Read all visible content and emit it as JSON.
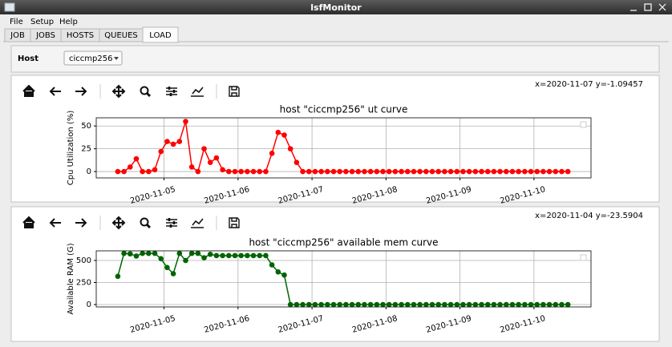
{
  "window": {
    "title": "lsfMonitor",
    "menu": [
      "File",
      "Setup",
      "Help"
    ],
    "tabs": [
      "JOB",
      "JOBS",
      "HOSTS",
      "QUEUES",
      "LOAD"
    ],
    "active_tab": 4,
    "host_label": "Host",
    "host_value": "ciccmp256"
  },
  "chart_data": [
    {
      "type": "line",
      "status": "x=2020-11-07 y=-1.09457",
      "title": "host \"ciccmp256\" ut curve",
      "ylabel": "Cpu Utilization (%)",
      "x": [
        "2020-11-04 09:00",
        "2020-11-04 11:00",
        "2020-11-04 13:00",
        "2020-11-04 15:00",
        "2020-11-04 17:00",
        "2020-11-04 19:00",
        "2020-11-04 21:00",
        "2020-11-04 23:00",
        "2020-11-05 01:00",
        "2020-11-05 03:00",
        "2020-11-05 05:00",
        "2020-11-05 07:00",
        "2020-11-05 09:00",
        "2020-11-05 11:00",
        "2020-11-05 13:00",
        "2020-11-05 15:00",
        "2020-11-05 17:00",
        "2020-11-05 19:00",
        "2020-11-05 21:00",
        "2020-11-05 23:00",
        "2020-11-06 01:00",
        "2020-11-06 03:00",
        "2020-11-06 05:00",
        "2020-11-06 07:00",
        "2020-11-06 09:00",
        "2020-11-06 11:00",
        "2020-11-06 13:00",
        "2020-11-06 15:00",
        "2020-11-06 17:00",
        "2020-11-06 19:00",
        "2020-11-06 21:00",
        "2020-11-06 23:00",
        "2020-11-07 01:00",
        "2020-11-07 03:00",
        "2020-11-07 05:00",
        "2020-11-07 07:00",
        "2020-11-07 09:00",
        "2020-11-07 11:00",
        "2020-11-07 13:00",
        "2020-11-07 15:00",
        "2020-11-07 17:00",
        "2020-11-07 19:00",
        "2020-11-07 21:00",
        "2020-11-07 23:00",
        "2020-11-08 01:00",
        "2020-11-08 03:00",
        "2020-11-08 05:00",
        "2020-11-08 07:00",
        "2020-11-08 09:00",
        "2020-11-08 11:00",
        "2020-11-08 13:00",
        "2020-11-08 15:00",
        "2020-11-08 17:00",
        "2020-11-08 19:00",
        "2020-11-08 21:00",
        "2020-11-08 23:00",
        "2020-11-09 01:00",
        "2020-11-09 03:00",
        "2020-11-09 05:00",
        "2020-11-09 07:00",
        "2020-11-09 09:00",
        "2020-11-09 11:00",
        "2020-11-09 13:00",
        "2020-11-09 15:00",
        "2020-11-09 17:00",
        "2020-11-09 19:00",
        "2020-11-09 21:00",
        "2020-11-09 23:00",
        "2020-11-10 01:00",
        "2020-11-10 03:00",
        "2020-11-10 05:00",
        "2020-11-10 07:00",
        "2020-11-10 09:00",
        "2020-11-10 11:00"
      ],
      "series": [
        {
          "color": "#ff0000",
          "values": [
            0,
            0,
            5,
            14,
            0,
            0,
            2,
            22,
            33,
            30,
            33,
            55,
            5,
            0,
            25,
            10,
            15,
            2,
            0,
            0,
            0,
            0,
            0,
            0,
            0,
            20,
            43,
            40,
            25,
            10,
            0,
            0,
            0,
            0,
            0,
            0,
            0,
            0,
            0,
            0,
            0,
            0,
            0,
            0,
            0,
            0,
            0,
            0,
            0,
            0,
            0,
            0,
            0,
            0,
            0,
            0,
            0,
            0,
            0,
            0,
            0,
            0,
            0,
            0,
            0,
            0,
            0,
            0,
            0,
            0,
            0,
            0,
            0,
            0
          ]
        }
      ],
      "xlim": [
        "2020-11-04 02:00",
        "2020-11-10 18:30"
      ],
      "xticks": [
        "2020-11-05",
        "2020-11-06",
        "2020-11-07",
        "2020-11-08",
        "2020-11-09",
        "2020-11-10"
      ],
      "ylim": [
        -7,
        59
      ],
      "yticks": [
        0,
        25,
        50
      ],
      "grid": true
    },
    {
      "type": "line",
      "status": "x=2020-11-04 y=-23.5904",
      "title": "host \"ciccmp256\" available mem curve",
      "ylabel": "Available RAM (G)",
      "x": [
        "2020-11-04 09:00",
        "2020-11-04 11:00",
        "2020-11-04 13:00",
        "2020-11-04 15:00",
        "2020-11-04 17:00",
        "2020-11-04 19:00",
        "2020-11-04 21:00",
        "2020-11-04 23:00",
        "2020-11-05 01:00",
        "2020-11-05 03:00",
        "2020-11-05 05:00",
        "2020-11-05 07:00",
        "2020-11-05 09:00",
        "2020-11-05 11:00",
        "2020-11-05 13:00",
        "2020-11-05 15:00",
        "2020-11-05 17:00",
        "2020-11-05 19:00",
        "2020-11-05 21:00",
        "2020-11-05 23:00",
        "2020-11-06 01:00",
        "2020-11-06 03:00",
        "2020-11-06 05:00",
        "2020-11-06 07:00",
        "2020-11-06 09:00",
        "2020-11-06 11:00",
        "2020-11-06 13:00",
        "2020-11-06 15:00",
        "2020-11-06 17:00",
        "2020-11-06 19:00",
        "2020-11-06 21:00",
        "2020-11-06 23:00",
        "2020-11-07 01:00",
        "2020-11-07 03:00",
        "2020-11-07 05:00",
        "2020-11-07 07:00",
        "2020-11-07 09:00",
        "2020-11-07 11:00",
        "2020-11-07 13:00",
        "2020-11-07 15:00",
        "2020-11-07 17:00",
        "2020-11-07 19:00",
        "2020-11-07 21:00",
        "2020-11-07 23:00",
        "2020-11-08 01:00",
        "2020-11-08 03:00",
        "2020-11-08 05:00",
        "2020-11-08 07:00",
        "2020-11-08 09:00",
        "2020-11-08 11:00",
        "2020-11-08 13:00",
        "2020-11-08 15:00",
        "2020-11-08 17:00",
        "2020-11-08 19:00",
        "2020-11-08 21:00",
        "2020-11-08 23:00",
        "2020-11-09 01:00",
        "2020-11-09 03:00",
        "2020-11-09 05:00",
        "2020-11-09 07:00",
        "2020-11-09 09:00",
        "2020-11-09 11:00",
        "2020-11-09 13:00",
        "2020-11-09 15:00",
        "2020-11-09 17:00",
        "2020-11-09 19:00",
        "2020-11-09 21:00",
        "2020-11-09 23:00",
        "2020-11-10 01:00",
        "2020-11-10 03:00",
        "2020-11-10 05:00",
        "2020-11-10 07:00",
        "2020-11-10 09:00",
        "2020-11-10 11:00"
      ],
      "series": [
        {
          "color": "#006400",
          "values": [
            320,
            580,
            575,
            550,
            580,
            580,
            580,
            520,
            420,
            350,
            580,
            500,
            580,
            580,
            530,
            570,
            555,
            555,
            555,
            555,
            555,
            555,
            555,
            555,
            555,
            450,
            370,
            335,
            0,
            0,
            0,
            0,
            0,
            0,
            0,
            0,
            0,
            0,
            0,
            0,
            0,
            0,
            0,
            0,
            0,
            0,
            0,
            0,
            0,
            0,
            0,
            0,
            0,
            0,
            0,
            0,
            0,
            0,
            0,
            0,
            0,
            0,
            0,
            0,
            0,
            0,
            0,
            0,
            0,
            0,
            0,
            0,
            0,
            0
          ]
        }
      ],
      "xlim": [
        "2020-11-04 02:00",
        "2020-11-10 18:30"
      ],
      "xticks": [
        "2020-11-05",
        "2020-11-06",
        "2020-11-07",
        "2020-11-08",
        "2020-11-09",
        "2020-11-10"
      ],
      "ylim": [
        -27,
        609
      ],
      "yticks": [
        0,
        250,
        500
      ],
      "grid": true
    }
  ]
}
